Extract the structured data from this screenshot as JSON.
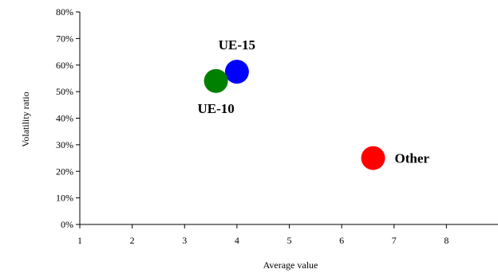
{
  "chart_data": {
    "type": "scatter",
    "title": "",
    "xlabel": "Average value",
    "ylabel": "Volatility ratio",
    "xlim": [
      1,
      9
    ],
    "ylim": [
      0,
      0.8
    ],
    "x_ticks": [
      "1",
      "2",
      "3",
      "4",
      "5",
      "6",
      "7",
      "8"
    ],
    "y_ticks": [
      "0%",
      "10%",
      "20%",
      "30%",
      "40%",
      "50%",
      "60%",
      "70%",
      "80%"
    ],
    "grid": false,
    "legend": "none",
    "points": [
      {
        "label": "UE-15",
        "x": 4.0,
        "y": 0.575,
        "color": "#0000ff",
        "label_pos": "above"
      },
      {
        "label": "UE-10",
        "x": 3.6,
        "y": 0.54,
        "color": "#008000",
        "label_pos": "below"
      },
      {
        "label": "Other",
        "x": 6.6,
        "y": 0.25,
        "color": "#ff0000",
        "label_pos": "right"
      }
    ]
  }
}
